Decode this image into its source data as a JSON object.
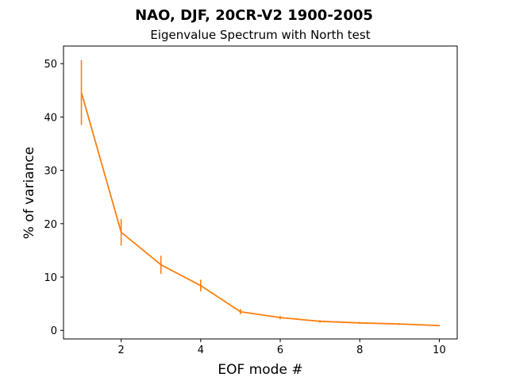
{
  "chart_data": {
    "type": "line",
    "title": "NAO, DJF, 20CR-V2 1900-2005",
    "subtitle": "Eigenvalue Spectrum with North test",
    "xlabel": "EOF mode #",
    "ylabel": "% of variance",
    "xlim": [
      0.55,
      10.45
    ],
    "ylim": [
      -1.6,
      53.3
    ],
    "x_ticks": [
      2,
      4,
      6,
      8,
      10
    ],
    "y_ticks": [
      0,
      10,
      20,
      30,
      40,
      50
    ],
    "grid": false,
    "x": [
      1,
      2,
      3,
      4,
      5,
      6,
      7,
      8,
      9,
      10
    ],
    "values": [
      44.6,
      18.4,
      12.3,
      8.4,
      3.5,
      2.4,
      1.7,
      1.4,
      1.2,
      0.9
    ],
    "errors": [
      6.1,
      2.5,
      1.7,
      1.1,
      0.5,
      0.33,
      0.23,
      0.19,
      0.16,
      0.12
    ],
    "line_color": "#ff7f0e",
    "errorbar_color": "#ff7f0e"
  }
}
